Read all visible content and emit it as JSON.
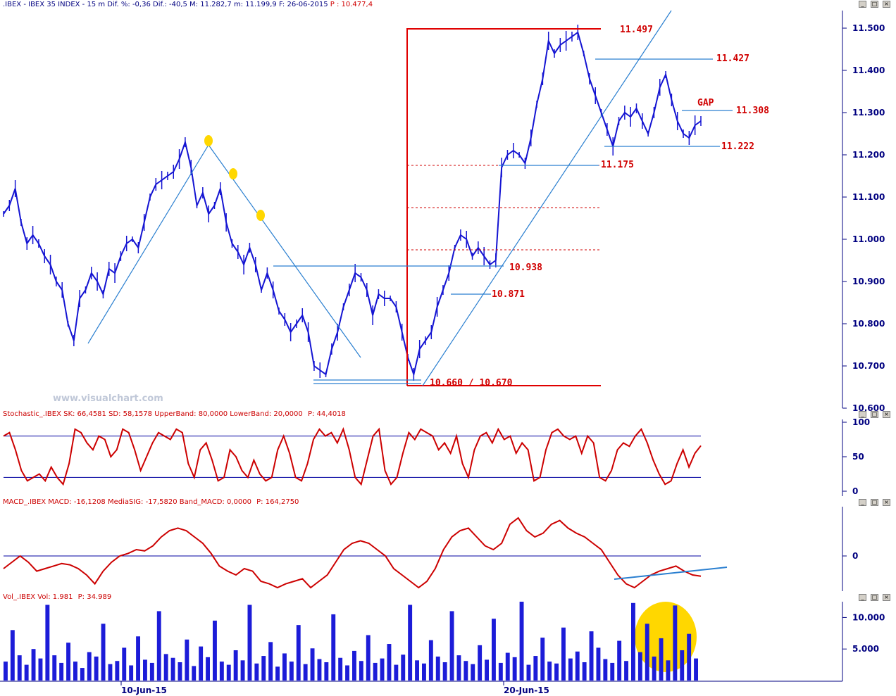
{
  "window": {
    "title": ".IBEX - IBEX 35 INDEX -  15 m Dif. %: -0,36 Dif.: -40,5 M: 11.282,7 m: 11.199,9 F: 26-06-2015",
    "price_text": "P : 10.477,4",
    "watermark": "www.visualchart.com"
  },
  "panels": {
    "stochastic": {
      "header": "Stochastic_.IBEX SK: 66,4581 SD: 58,1578 UpperBand: 80,0000 LowerBand: 20,0000",
      "price": "P: 44,4018"
    },
    "macd": {
      "header": "MACD_.IBEX MACD: -16,1208 MediaSIG: -17,5820 Band_MACD: 0,0000",
      "price": "P: 164,2750"
    },
    "volume": {
      "header": "Vol_.IBEX Vol: 1.981",
      "price": "P: 34.989"
    }
  },
  "colors": {
    "price_line": "#1414d2",
    "levels": "#d00000",
    "trend": "#2a7fd0",
    "stoch": "#cc0000",
    "band": "#0000a0",
    "volume": "#1c1cd8",
    "highlight": "#ffd700"
  },
  "chart_data": [
    {
      "type": "line",
      "title": "IBEX 35 INDEX 15 m",
      "ylim": [
        10600,
        11550
      ],
      "y_ticks": [
        "11.500",
        "11.400",
        "11.300",
        "11.200",
        "11.100",
        "11.000",
        "10.900",
        "10.800",
        "10.700",
        "10.600"
      ],
      "x_ticks": [
        "10-Jun-15",
        "20-Jun-15"
      ],
      "annotations": {
        "gap": "GAP"
      },
      "levels": [
        {
          "label": "11.497",
          "value": 11497
        },
        {
          "label": "11.427",
          "value": 11427
        },
        {
          "label": "11.308",
          "value": 11308
        },
        {
          "label": "11.222",
          "value": 11222
        },
        {
          "label": "11.175",
          "value": 11175
        },
        {
          "label": "10.938",
          "value": 10938
        },
        {
          "label": "10.871",
          "value": 10871
        },
        {
          "label": "10.660 / 10.670",
          "value": 10660
        }
      ],
      "series": [
        {
          "values": [
            11060,
            11080,
            11120,
            11040,
            10990,
            11010,
            10990,
            10960,
            10940,
            10900,
            10880,
            10800,
            10760,
            10860,
            10880,
            10920,
            10900,
            10870,
            10930,
            10920,
            10960,
            10990,
            11000,
            10980,
            11040,
            11100,
            11130,
            11140,
            11150,
            11160,
            11190,
            11230,
            11170,
            11080,
            11110,
            11060,
            11080,
            11120,
            11040,
            10990,
            10970,
            10940,
            10980,
            10940,
            10880,
            10920,
            10880,
            10830,
            10810,
            10780,
            10800,
            10820,
            10780,
            10700,
            10690,
            10680,
            10740,
            10780,
            10840,
            10880,
            10920,
            10910,
            10880,
            10820,
            10870,
            10860,
            10860,
            10840,
            10780,
            10720,
            10680,
            10740,
            10760,
            10780,
            10840,
            10880,
            10920,
            10980,
            11010,
            11000,
            10960,
            10980,
            10960,
            10940,
            10950,
            11170,
            11200,
            11210,
            11200,
            11180,
            11240,
            11320,
            11380,
            11470,
            11440,
            11460,
            11470,
            11480,
            11490,
            11440,
            11380,
            11340,
            11300,
            11260,
            11220,
            11280,
            11300,
            11290,
            11310,
            11280,
            11250,
            11300,
            11360,
            11390,
            11330,
            11280,
            11250,
            11240,
            11270,
            11280
          ]
        }
      ]
    },
    {
      "type": "line",
      "title": "Stochastic",
      "ylim": [
        0,
        100
      ],
      "y_ticks": [
        "100",
        "50",
        "0"
      ],
      "bands": [
        80,
        20
      ],
      "series": [
        {
          "name": "SK",
          "values": [
            80,
            85,
            60,
            30,
            15,
            20,
            25,
            15,
            35,
            20,
            10,
            40,
            90,
            85,
            70,
            60,
            80,
            75,
            50,
            60,
            90,
            85,
            60,
            30,
            50,
            70,
            85,
            80,
            75,
            90,
            85,
            40,
            20,
            60,
            70,
            45,
            15,
            20,
            60,
            50,
            30,
            20,
            45,
            25,
            15,
            20,
            60,
            80,
            55,
            20,
            15,
            40,
            75,
            90,
            80,
            85,
            70,
            90,
            60,
            20,
            10,
            45,
            80,
            90,
            30,
            10,
            20,
            55,
            85,
            75,
            90,
            85,
            80,
            60,
            70,
            55,
            80,
            40,
            20,
            60,
            80,
            85,
            70,
            90,
            75,
            80,
            55,
            70,
            60,
            15,
            20,
            60,
            85,
            90,
            80,
            75,
            80,
            55,
            80,
            70,
            20,
            15,
            30,
            60,
            70,
            65,
            80,
            90,
            70,
            45,
            25,
            10,
            15,
            40,
            60,
            35,
            55,
            66
          ]
        }
      ]
    },
    {
      "type": "line",
      "title": "MACD",
      "ylim": [
        -40,
        30
      ],
      "y_ticks": [
        "0"
      ],
      "series": [
        {
          "name": "MACD",
          "values": [
            -10,
            -5,
            0,
            -5,
            -12,
            -10,
            -8,
            -6,
            -7,
            -10,
            -15,
            -22,
            -12,
            -5,
            0,
            2,
            5,
            4,
            8,
            15,
            20,
            22,
            20,
            15,
            10,
            2,
            -8,
            -12,
            -15,
            -10,
            -12,
            -20,
            -22,
            -25,
            -22,
            -20,
            -18,
            -25,
            -20,
            -15,
            -5,
            5,
            10,
            12,
            10,
            5,
            0,
            -10,
            -15,
            -20,
            -25,
            -20,
            -10,
            5,
            15,
            20,
            22,
            15,
            8,
            5,
            10,
            25,
            30,
            20,
            15,
            18,
            25,
            28,
            22,
            18,
            15,
            10,
            5,
            -5,
            -15,
            -22,
            -25,
            -20,
            -15,
            -12,
            -10,
            -8,
            -12,
            -15,
            -16
          ]
        }
      ]
    },
    {
      "type": "bar",
      "title": "Volume",
      "ylim": [
        0,
        12500
      ],
      "y_ticks": [
        "10.000",
        "5.000"
      ],
      "values": [
        3000,
        8000,
        4000,
        2500,
        5000,
        3500,
        12000,
        4000,
        2800,
        6000,
        3000,
        2000,
        4500,
        3800,
        9000,
        2600,
        3100,
        5200,
        2400,
        7000,
        3300,
        2800,
        11000,
        4200,
        3600,
        2900,
        6500,
        2300,
        5400,
        3700,
        9500,
        3000,
        2500,
        4800,
        3200,
        12000,
        2700,
        3900,
        6100,
        2200,
        4300,
        3000,
        8800,
        2600,
        5100,
        3400,
        2900,
        10500,
        3600,
        2400,
        4700,
        3100,
        7200,
        2800,
        3500,
        5800,
        2500,
        4100,
        12000,
        3200,
        2700,
        6400,
        3800,
        2900,
        11000,
        4000,
        3100,
        2600,
        5600,
        3300,
        9800,
        2800,
        4400,
        3700,
        12500,
        2500,
        3900,
        6800,
        3000,
        2700,
        8400,
        3500,
        4600,
        2900,
        7800,
        5200,
        3400,
        2800,
        6300,
        3100,
        12300,
        4500,
        9000,
        3800,
        6700,
        3200,
        11900,
        4800,
        7400,
        3500
      ]
    }
  ]
}
